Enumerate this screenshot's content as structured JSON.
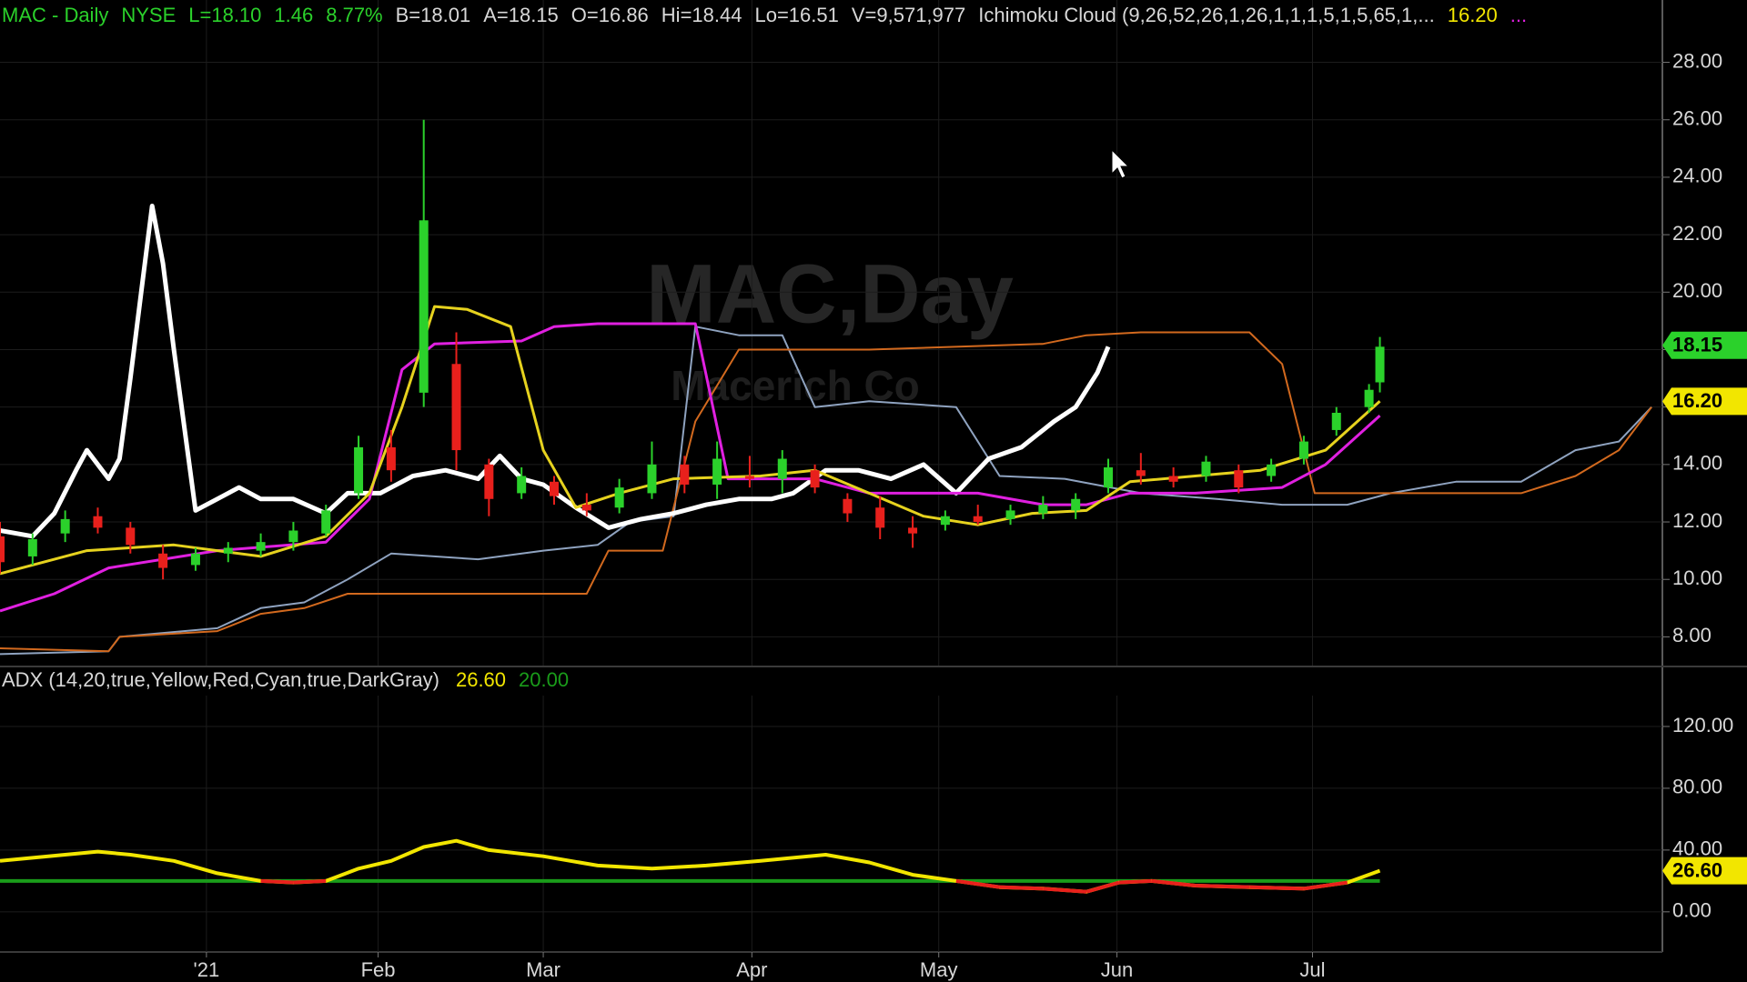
{
  "chart_data": [
    {
      "type": "candlestick",
      "header": [
        {
          "text": "MAC - Daily",
          "color": "#2bd12b"
        },
        {
          "text": "NYSE",
          "color": "#2bd12b"
        },
        {
          "text": "L=18.10",
          "color": "#2bd12b"
        },
        {
          "text": "1.46",
          "color": "#2bd12b"
        },
        {
          "text": "8.77%",
          "color": "#2bd12b"
        },
        {
          "text": "B=18.01",
          "color": "#d8d8d8"
        },
        {
          "text": "A=18.15",
          "color": "#d8d8d8"
        },
        {
          "text": "O=16.86",
          "color": "#d8d8d8"
        },
        {
          "text": "Hi=18.44",
          "color": "#d8d8d8"
        },
        {
          "text": "Lo=16.51",
          "color": "#d8d8d8"
        },
        {
          "text": "V=9,571,977",
          "color": "#d8d8d8"
        },
        {
          "text": "Ichimoku Cloud (9,26,52,26,1,26,1,1,1,5,1,5,65,1,...",
          "color": "#d8d8d8"
        },
        {
          "text": "16.20",
          "color": "#f2e600"
        },
        {
          "text": "...",
          "color": "#e020e0"
        }
      ],
      "watermark": "MAC,Day",
      "watermark_subtitle": "Macerich Co",
      "xlim": [
        0,
        153
      ],
      "ylim": [
        7,
        30.17
      ],
      "yticks": [
        {
          "value": 8,
          "label": "8.00"
        },
        {
          "value": 10,
          "label": "10.00"
        },
        {
          "value": 12,
          "label": "12.00"
        },
        {
          "value": 14,
          "label": "14.00"
        },
        {
          "value": 16,
          "label": "16.00"
        },
        {
          "value": 18,
          "label": "18.00"
        },
        {
          "value": 20,
          "label": "20.00"
        },
        {
          "value": 22,
          "label": "22.00"
        },
        {
          "value": 24,
          "label": "24.00"
        },
        {
          "value": 26,
          "label": "26.00"
        },
        {
          "value": 28,
          "label": "28.00"
        }
      ],
      "grid": true,
      "candles": {
        "up_color": "#2bd12b",
        "down_color": "#e8201c",
        "x": [
          0,
          3,
          6,
          9,
          12,
          15,
          18,
          21,
          24,
          27,
          30,
          33,
          36,
          39,
          42,
          45,
          48,
          51,
          54,
          57,
          60,
          63,
          66,
          69,
          72,
          75,
          78,
          81,
          84,
          87,
          90,
          93,
          96,
          99,
          102,
          105,
          108,
          111,
          114,
          117,
          120,
          123,
          126,
          127
        ],
        "open": [
          11.5,
          10.8,
          11.6,
          12.2,
          11.8,
          10.9,
          10.5,
          10.9,
          11.0,
          11.3,
          11.6,
          13.0,
          14.6,
          16.5,
          17.5,
          14.0,
          13.0,
          13.4,
          12.6,
          12.5,
          13.0,
          14.0,
          13.3,
          13.6,
          13.5,
          13.8,
          12.8,
          12.5,
          11.8,
          11.9,
          12.2,
          12.1,
          12.3,
          12.4,
          13.2,
          13.8,
          13.6,
          13.6,
          13.8,
          13.6,
          14.2,
          15.2,
          16.0,
          16.86
        ],
        "high": [
          12.0,
          11.6,
          12.4,
          12.5,
          12.0,
          11.2,
          11.1,
          11.3,
          11.6,
          12.0,
          12.6,
          15.0,
          15.2,
          26.0,
          18.6,
          14.2,
          13.9,
          13.6,
          13.0,
          13.5,
          14.8,
          14.3,
          14.8,
          14.3,
          14.5,
          14.0,
          13.0,
          12.9,
          12.2,
          12.4,
          12.6,
          12.6,
          12.9,
          13.0,
          14.2,
          14.4,
          13.9,
          14.3,
          14.0,
          14.2,
          15.0,
          16.0,
          16.8,
          18.44
        ],
        "low": [
          10.2,
          10.5,
          11.3,
          11.6,
          10.9,
          10.0,
          10.3,
          10.6,
          10.8,
          11.0,
          11.5,
          12.8,
          13.4,
          16.0,
          13.8,
          12.2,
          12.8,
          12.6,
          12.2,
          12.3,
          12.8,
          13.0,
          12.8,
          13.2,
          13.0,
          13.0,
          12.0,
          11.4,
          11.1,
          11.7,
          11.9,
          11.9,
          12.1,
          12.1,
          13.0,
          13.3,
          13.2,
          13.4,
          13.0,
          13.4,
          14.0,
          15.0,
          15.8,
          16.51
        ],
        "close": [
          10.6,
          11.4,
          12.1,
          11.8,
          11.2,
          10.4,
          10.9,
          11.1,
          11.3,
          11.7,
          12.4,
          14.6,
          13.8,
          22.5,
          14.5,
          12.8,
          13.6,
          12.9,
          12.4,
          13.2,
          14.0,
          13.3,
          14.2,
          13.5,
          14.2,
          13.2,
          12.3,
          11.8,
          11.6,
          12.2,
          12.0,
          12.4,
          12.6,
          12.8,
          13.9,
          13.6,
          13.4,
          14.1,
          13.2,
          14.0,
          14.8,
          15.8,
          16.6,
          18.1
        ]
      },
      "series": [
        {
          "color": "#8fa3c0",
          "width": 2,
          "x": [
            0,
            10,
            11,
            20,
            24,
            28,
            32,
            36,
            44,
            50,
            55,
            58,
            62,
            64,
            68,
            72,
            75,
            80,
            88,
            92,
            98,
            105,
            112,
            118,
            124,
            128,
            134,
            140,
            145,
            149,
            152
          ],
          "values": [
            7.4,
            7.5,
            8.0,
            8.3,
            9.0,
            9.2,
            10.0,
            10.9,
            10.7,
            11.0,
            11.2,
            12.0,
            12.2,
            18.8,
            18.5,
            18.5,
            16.0,
            16.2,
            16.0,
            13.6,
            13.5,
            13.0,
            12.8,
            12.6,
            12.6,
            13.0,
            13.4,
            13.4,
            14.5,
            14.8,
            16.0
          ]
        },
        {
          "color": "#d2691e",
          "width": 2,
          "x": [
            0,
            10,
            11,
            20,
            24,
            28,
            32,
            40,
            54,
            56,
            58,
            61,
            64,
            68,
            80,
            96,
            100,
            105,
            115,
            118,
            121,
            125,
            130,
            140,
            145,
            149,
            152
          ],
          "values": [
            7.6,
            7.5,
            8.0,
            8.2,
            8.8,
            9.0,
            9.5,
            9.5,
            9.5,
            11.0,
            11.0,
            11.0,
            15.5,
            18.0,
            18.0,
            18.2,
            18.5,
            18.6,
            18.6,
            17.5,
            13.0,
            13.0,
            13.0,
            13.0,
            13.6,
            14.5,
            16.0
          ]
        },
        {
          "color": "#ffffff",
          "width": 5,
          "x": [
            0,
            3,
            5,
            7,
            8,
            10,
            11,
            12,
            13,
            14,
            15,
            16,
            18,
            20,
            22,
            24,
            27,
            30,
            32,
            35,
            38,
            41,
            44,
            46,
            48,
            50,
            53,
            56,
            59,
            62,
            65,
            68,
            71,
            73,
            76,
            79,
            82,
            85,
            88,
            91,
            94,
            97,
            99,
            101,
            102
          ],
          "values": [
            11.7,
            11.5,
            12.3,
            13.8,
            14.5,
            13.5,
            14.2,
            17,
            20,
            23,
            21,
            18,
            12.4,
            12.8,
            13.2,
            12.8,
            12.8,
            12.3,
            13.0,
            13.0,
            13.6,
            13.8,
            13.5,
            14.3,
            13.5,
            13.3,
            12.5,
            11.8,
            12.1,
            12.3,
            12.6,
            12.8,
            12.8,
            13.0,
            13.8,
            13.8,
            13.5,
            14.0,
            13.0,
            14.2,
            14.6,
            15.5,
            16.0,
            17.2,
            18.1
          ]
        },
        {
          "color": "#e020e0",
          "width": 3,
          "x": [
            0,
            5,
            10,
            20,
            30,
            34,
            37,
            40,
            48,
            51,
            55,
            64,
            67,
            75,
            80,
            90,
            96,
            100,
            104,
            110,
            118,
            122,
            127
          ],
          "values": [
            8.9,
            9.5,
            10.4,
            11.0,
            11.3,
            12.8,
            17.3,
            18.2,
            18.3,
            18.8,
            18.9,
            18.9,
            13.5,
            13.5,
            13.0,
            13.0,
            12.6,
            12.6,
            13.0,
            13.0,
            13.2,
            14.0,
            15.7
          ]
        },
        {
          "color": "#e6d21e",
          "width": 3,
          "x": [
            0,
            8,
            16,
            24,
            30,
            34,
            37,
            40,
            43,
            47,
            50,
            53,
            57,
            62,
            70,
            75,
            80,
            85,
            90,
            95,
            100,
            104,
            110,
            116,
            122,
            127
          ],
          "values": [
            10.2,
            11.0,
            11.2,
            10.8,
            11.5,
            13,
            16,
            19.5,
            19.4,
            18.8,
            14.5,
            12.5,
            13.0,
            13.5,
            13.6,
            13.8,
            13.0,
            12.2,
            11.9,
            12.3,
            12.4,
            13.4,
            13.6,
            13.8,
            14.5,
            16.2
          ]
        }
      ],
      "markers": [
        {
          "value": 18.15,
          "label": "18.15",
          "color": "#2bd12b"
        },
        {
          "value": 16.2,
          "label": "16.20",
          "color": "#f2e600"
        }
      ]
    },
    {
      "type": "line",
      "title": "ADX (14,20,true,Yellow,Red,Cyan,true,DarkGray)",
      "header": [
        {
          "text": "26.60",
          "color": "#f2e600"
        },
        {
          "text": "20.00",
          "color": "#1a9c1a"
        }
      ],
      "xlim": [
        0,
        153
      ],
      "ylim": [
        -26,
        140
      ],
      "xticks": [
        {
          "value": 19,
          "label": "'21"
        },
        {
          "value": 34.8,
          "label": "Feb"
        },
        {
          "value": 50,
          "label": "Mar"
        },
        {
          "value": 69.2,
          "label": "Apr"
        },
        {
          "value": 86.4,
          "label": "May"
        },
        {
          "value": 102.8,
          "label": "Jun"
        },
        {
          "value": 120.8,
          "label": "Jul"
        }
      ],
      "yticks": [
        {
          "value": 0,
          "label": "0.00"
        },
        {
          "value": 40,
          "label": "40.00"
        },
        {
          "value": 80,
          "label": "80.00"
        },
        {
          "value": 120,
          "label": "120.00"
        }
      ],
      "grid": true,
      "threshold": 20,
      "threshold_color": "#1a9c1a",
      "series": [
        {
          "color": "#f2e600",
          "below_color": "#e8201c",
          "x": [
            0,
            6,
            9,
            12,
            16,
            20,
            24,
            27,
            30,
            33,
            36,
            39,
            42,
            45,
            50,
            55,
            60,
            65,
            70,
            76,
            80,
            84,
            88,
            92,
            96,
            100,
            103,
            106,
            110,
            115,
            120,
            124,
            127
          ],
          "values": [
            33,
            37,
            39,
            37,
            33,
            25,
            20,
            19,
            20,
            28,
            33,
            42,
            46,
            40,
            36,
            30,
            28,
            30,
            33,
            37,
            32,
            24,
            20,
            16,
            15,
            13,
            19,
            20,
            17,
            16,
            15,
            19,
            26.6
          ]
        }
      ],
      "markers": [
        {
          "value": 26.6,
          "label": "26.60",
          "color": "#f2e600"
        }
      ]
    }
  ]
}
